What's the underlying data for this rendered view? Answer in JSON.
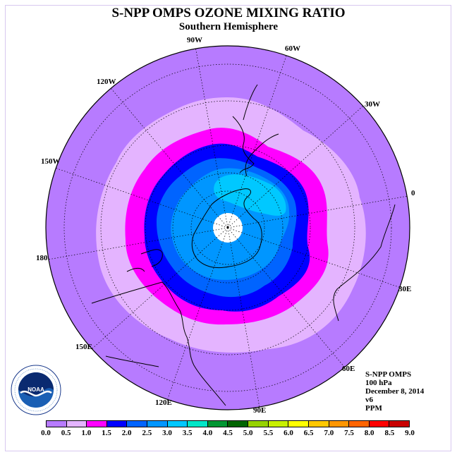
{
  "title": "S-NPP OMPS OZONE MIXING RATIO",
  "subtitle": "Southern Hemisphere",
  "longitude_labels": [
    {
      "id": "90w",
      "text": "90W"
    },
    {
      "id": "60w",
      "text": "60W"
    },
    {
      "id": "30w",
      "text": "30W"
    },
    {
      "id": "0",
      "text": "0"
    },
    {
      "id": "30e",
      "text": "30E"
    },
    {
      "id": "60e",
      "text": "60E"
    },
    {
      "id": "90e",
      "text": "90E"
    },
    {
      "id": "120e",
      "text": "120E"
    },
    {
      "id": "150e",
      "text": "150E"
    },
    {
      "id": "180",
      "text": "180"
    },
    {
      "id": "150w",
      "text": "150W"
    },
    {
      "id": "120w",
      "text": "120W"
    }
  ],
  "info": {
    "instrument": "S-NPP OMPS",
    "level": "100 hPa",
    "date": "December 8, 2014",
    "version": "v6",
    "units": "PPM"
  },
  "logo": {
    "text": "NOAA",
    "ring_text": "NATIONAL OCEANIC AND ATMOSPHERIC ADMINISTRATION · U.S. DEPARTMENT OF COMMERCE"
  },
  "colorbar": {
    "labels": [
      "0.0",
      "0.5",
      "1.0",
      "1.5",
      "2.0",
      "2.5",
      "3.0",
      "3.5",
      "4.0",
      "4.5",
      "5.0",
      "5.5",
      "6.0",
      "6.5",
      "7.0",
      "7.5",
      "8.0",
      "8.5",
      "9.0"
    ],
    "colors": [
      "#b77bff",
      "#e4b4ff",
      "#ff00ff",
      "#0000ff",
      "#0064ff",
      "#0096ff",
      "#00c8ff",
      "#00e6c8",
      "#009632",
      "#006400",
      "#96d200",
      "#c8f000",
      "#ffff00",
      "#ffc800",
      "#ff9600",
      "#ff6400",
      "#ff0000",
      "#c80000"
    ]
  },
  "map_colors": {
    "c0": "#b77bff",
    "c1": "#e4b4ff",
    "c2": "#ff00ff",
    "c3": "#0000ff",
    "c4": "#0064ff",
    "c5": "#0096ff",
    "c6": "#00c8ff",
    "pole": "#ffffff"
  }
}
